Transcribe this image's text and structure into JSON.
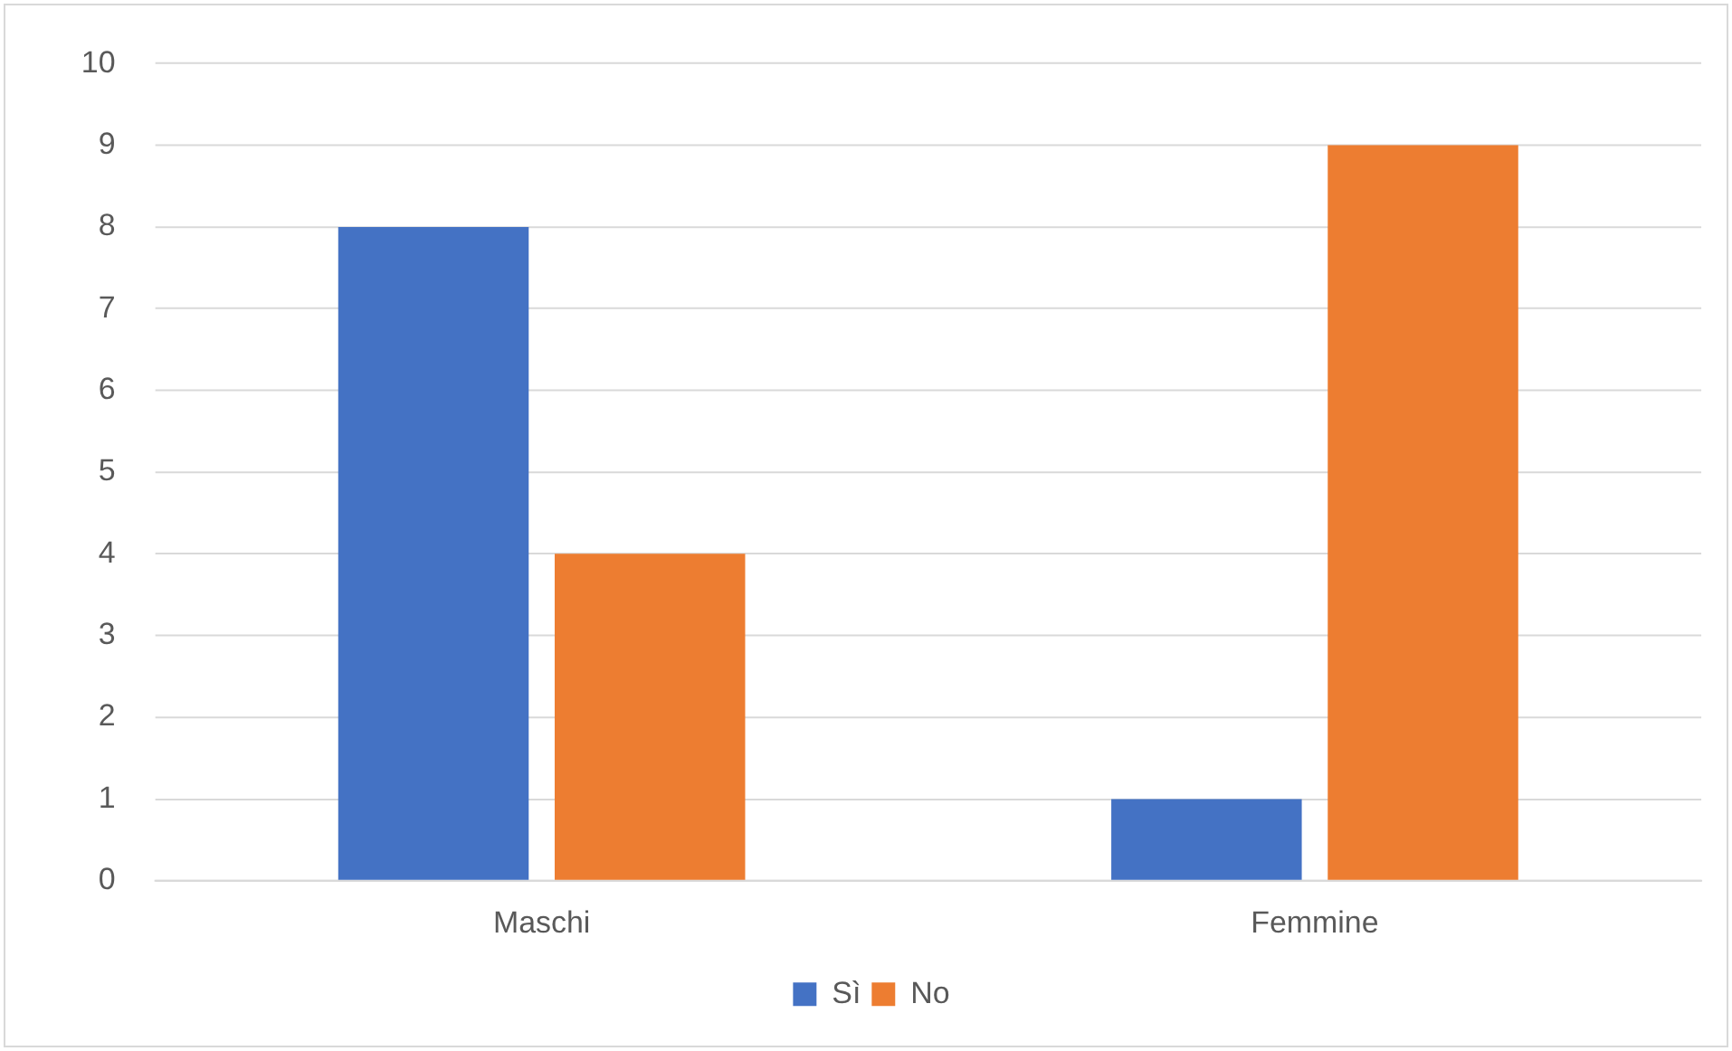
{
  "chart_data": {
    "type": "bar",
    "categories": [
      "Maschi",
      "Femmine"
    ],
    "series": [
      {
        "name": "Sì",
        "color": "#4472c4",
        "values": [
          8,
          1
        ]
      },
      {
        "name": "No",
        "color": "#ed7d31",
        "values": [
          4,
          9
        ]
      }
    ],
    "ylim": [
      0,
      10
    ],
    "yticks": [
      0,
      1,
      2,
      3,
      4,
      5,
      6,
      7,
      8,
      9,
      10
    ],
    "grid": "y",
    "legend": "bottom"
  }
}
